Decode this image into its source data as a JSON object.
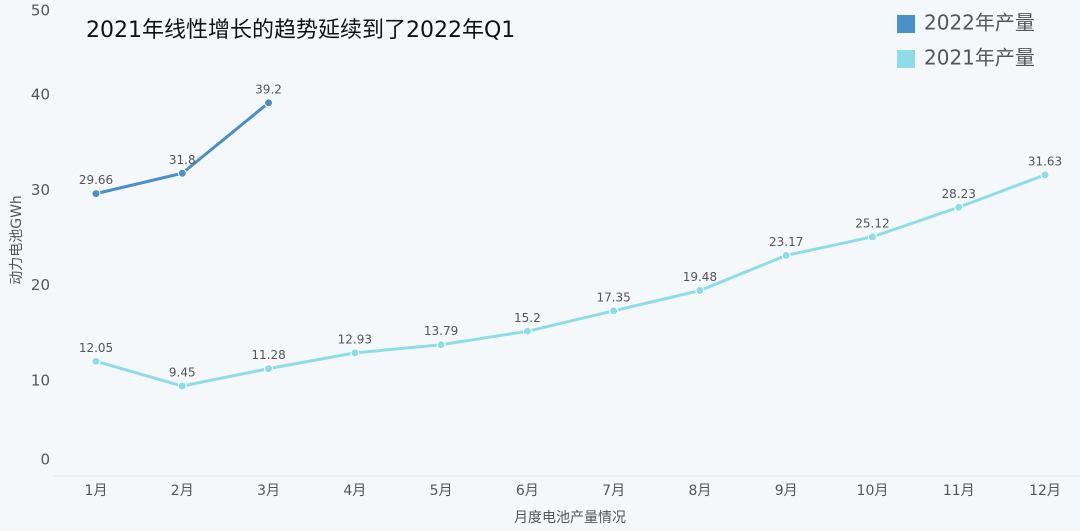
{
  "chart_data": {
    "type": "line",
    "title": "2021年线性增长的趋势延续到了2022年Q1",
    "xlabel": "月度电池产量情况",
    "ylabel": "动力电池GWh",
    "categories": [
      "1月",
      "2月",
      "3月",
      "4月",
      "5月",
      "6月",
      "7月",
      "8月",
      "9月",
      "10月",
      "11月",
      "12月"
    ],
    "series": [
      {
        "name": "2022年产量",
        "color": "#4a8fc9",
        "values": [
          29.66,
          31.8,
          39.2,
          null,
          null,
          null,
          null,
          null,
          null,
          null,
          null,
          null
        ]
      },
      {
        "name": "2021年产量",
        "color": "#8ddde9",
        "values": [
          12.05,
          9.45,
          11.28,
          12.93,
          13.79,
          15.2,
          17.35,
          19.48,
          23.17,
          25.12,
          28.23,
          31.63
        ]
      }
    ],
    "ylim": [
      0,
      50
    ],
    "yticks": [
      0,
      10,
      20,
      30,
      40,
      50
    ],
    "grid": false,
    "legend": "top-right"
  }
}
